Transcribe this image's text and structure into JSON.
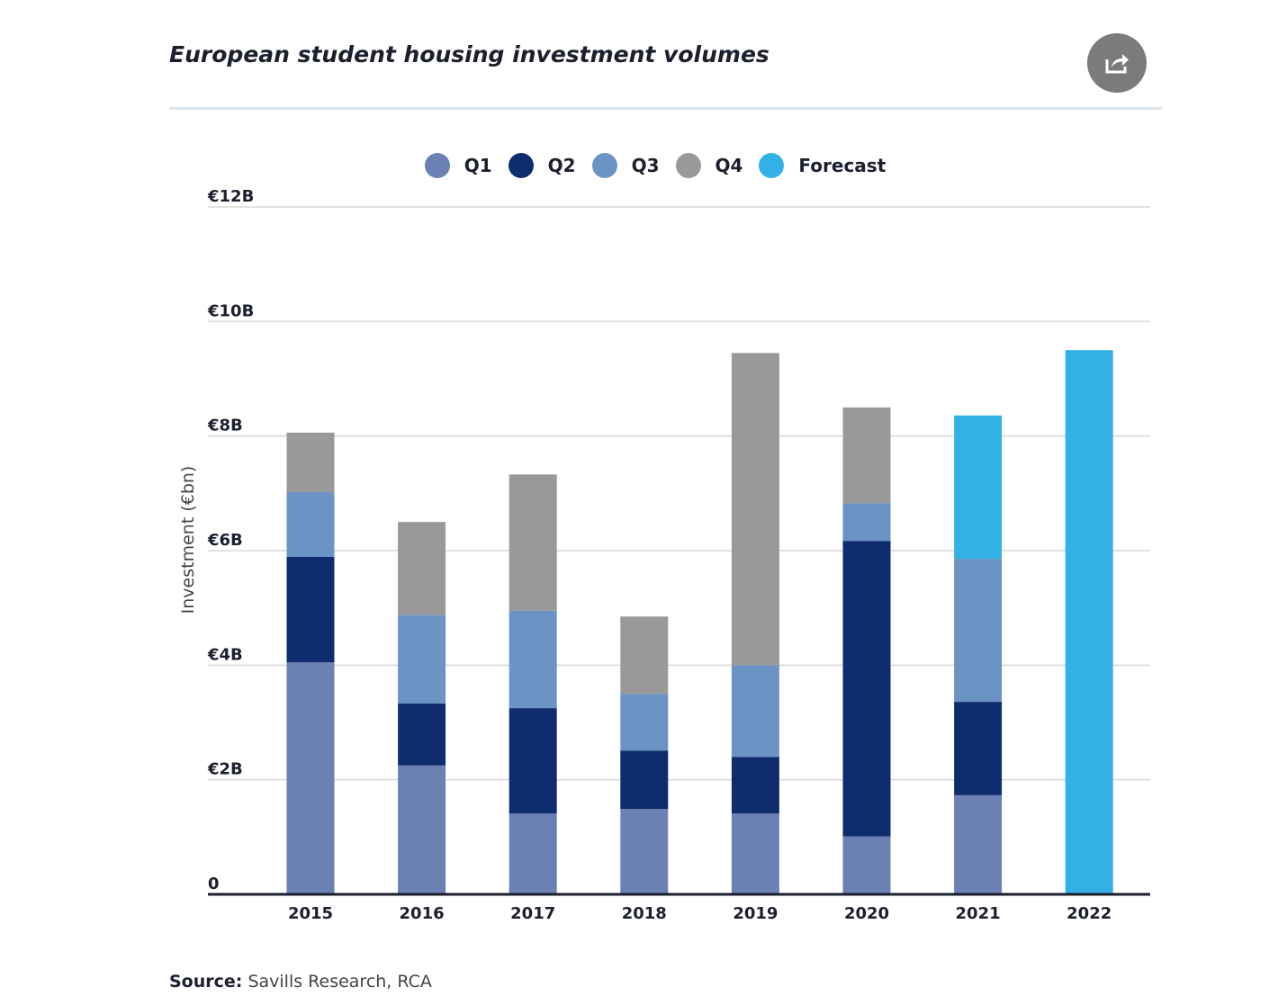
{
  "title": "European student housing investment volumes",
  "share_icon": "share-icon",
  "source": {
    "label": "Source:",
    "text": "Savills Research, RCA"
  },
  "chart_data": {
    "type": "bar",
    "stacked": true,
    "title": "European student housing investment volumes",
    "ylabel": "Investment (€bn)",
    "xlabel": "",
    "ylim": [
      0,
      12
    ],
    "yticks": [
      {
        "v": 0,
        "label": "0"
      },
      {
        "v": 2,
        "label": "€2B"
      },
      {
        "v": 4,
        "label": "€4B"
      },
      {
        "v": 6,
        "label": "€6B"
      },
      {
        "v": 8,
        "label": "€8B"
      },
      {
        "v": 10,
        "label": "€10B"
      },
      {
        "v": 12,
        "label": "€12B"
      }
    ],
    "grid": true,
    "legend_position": "top",
    "categories": [
      "2015",
      "2016",
      "2017",
      "2018",
      "2019",
      "2020",
      "2021",
      "2022"
    ],
    "series": [
      {
        "name": "Q1",
        "color": "#6b80b3",
        "values": [
          4.05,
          2.25,
          1.41,
          1.49,
          1.41,
          1.01,
          1.73,
          0
        ]
      },
      {
        "name": "Q2",
        "color": "#0f2d6e",
        "values": [
          1.84,
          1.08,
          1.84,
          1.02,
          0.99,
          5.16,
          1.63,
          0
        ]
      },
      {
        "name": "Q3",
        "color": "#6b93c4",
        "values": [
          1.13,
          1.55,
          1.7,
          0.99,
          1.6,
          0.66,
          2.5,
          0
        ]
      },
      {
        "name": "Q4",
        "color": "#999999",
        "values": [
          1.04,
          1.62,
          2.38,
          1.35,
          5.45,
          1.67,
          0,
          0
        ]
      },
      {
        "name": "Forecast",
        "color": "#33b0e5",
        "values": [
          0,
          0,
          0,
          0,
          0,
          0,
          2.5,
          9.5
        ]
      }
    ]
  }
}
